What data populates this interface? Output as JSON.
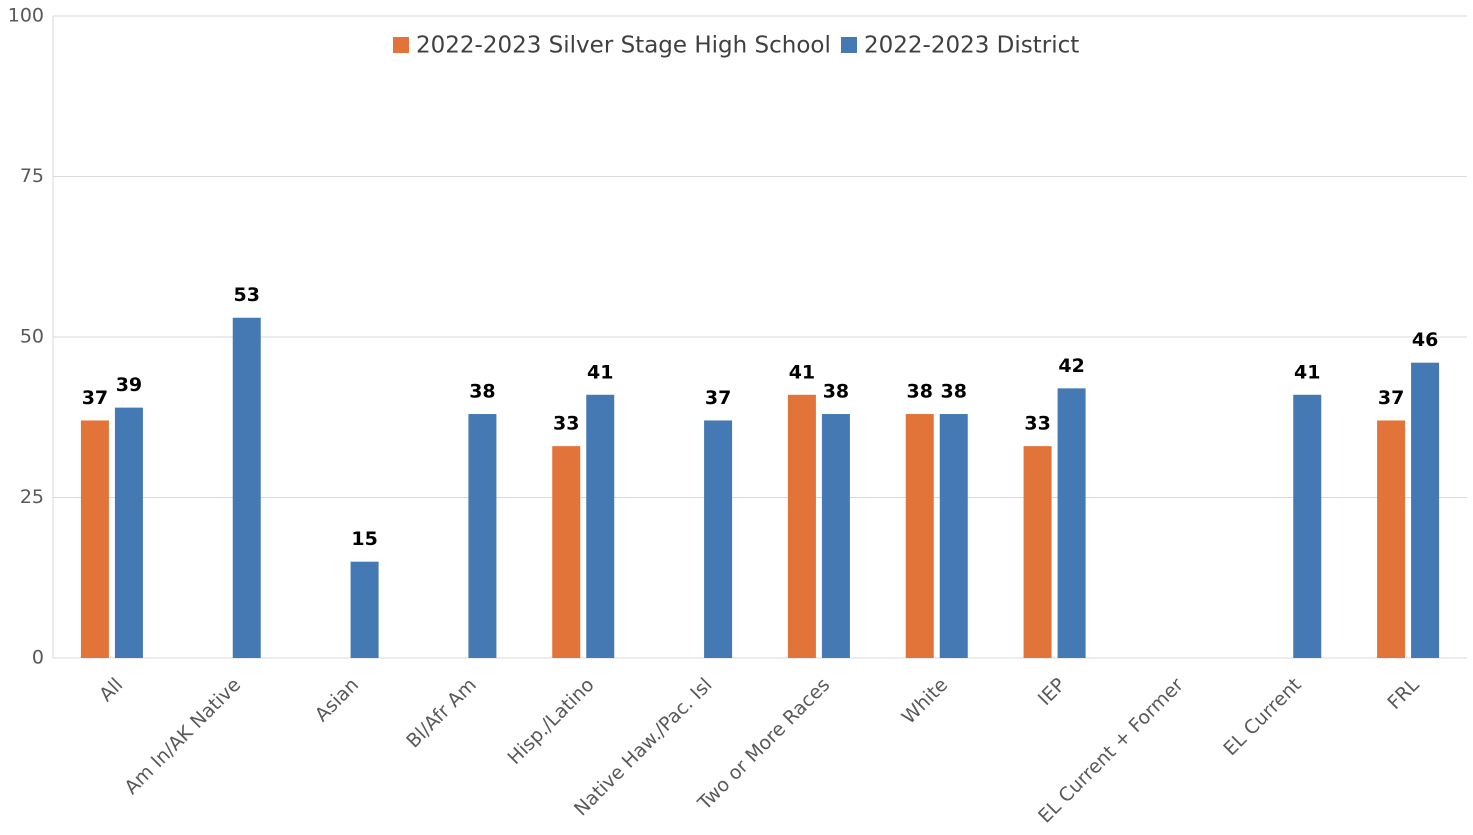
{
  "chart_data": {
    "type": "bar",
    "categories": [
      "All",
      "Am In/AK Native",
      "Asian",
      "Bl/Afr Am",
      "Hisp./Latino",
      "Native Haw./Pac. Isl",
      "Two or More Races",
      "White",
      "IEP",
      "EL Current + Former",
      "EL Current",
      "FRL"
    ],
    "series": [
      {
        "name": "2022-2023 Silver Stage High School",
        "color": "#e2743a",
        "values": [
          37,
          null,
          null,
          null,
          33,
          null,
          41,
          38,
          33,
          null,
          null,
          37
        ]
      },
      {
        "name": "2022-2023 District",
        "color": "#4479b3",
        "values": [
          39,
          53,
          15,
          38,
          41,
          37,
          38,
          38,
          42,
          null,
          41,
          46
        ]
      }
    ],
    "ylim": [
      0,
      100
    ],
    "yticks": [
      0,
      25,
      50,
      75,
      100
    ],
    "grid": true,
    "legend": "top"
  }
}
